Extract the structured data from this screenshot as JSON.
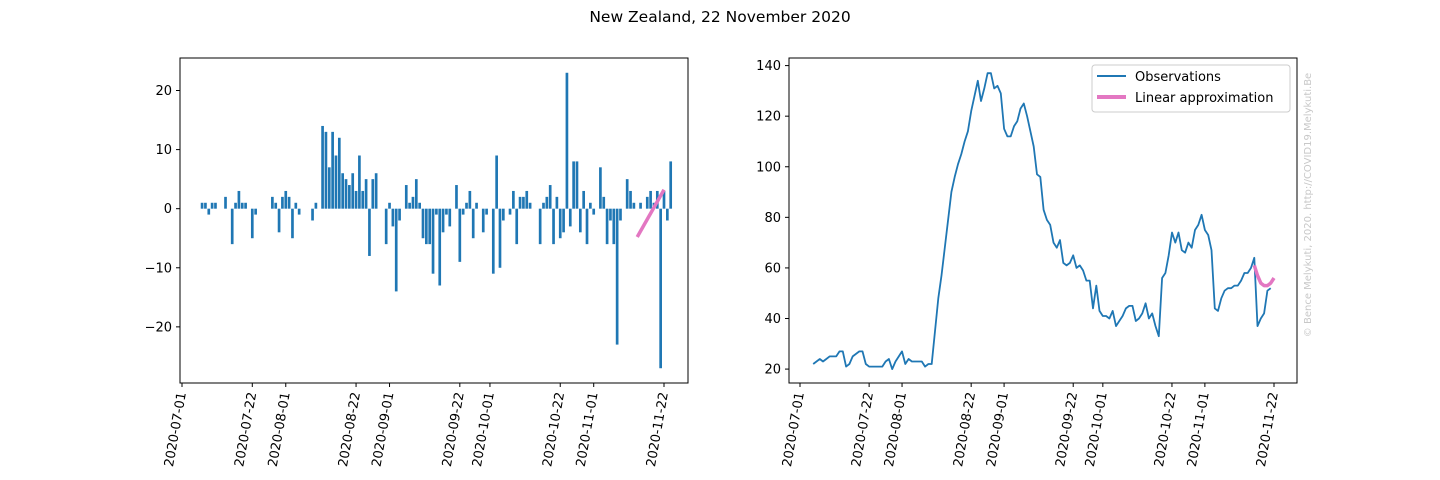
{
  "figure": {
    "title": "New Zealand, 22 November 2020",
    "watermark": "© Bence Melykuti, 2020. http://COVID19.Melykuti.Be"
  },
  "colors": {
    "bar": "#1f77b4",
    "observations": "#1f77b4",
    "linear": "#e377c2",
    "watermark": "#c8c8c8"
  },
  "chart_data": [
    {
      "type": "bar",
      "title": "",
      "xlabel": "",
      "ylabel": "",
      "x_ticks": [
        "2020-07-01",
        "2020-07-22",
        "2020-08-01",
        "2020-08-22",
        "2020-09-01",
        "2020-09-22",
        "2020-10-01",
        "2020-10-22",
        "2020-11-01",
        "2020-11-22"
      ],
      "ylim": [
        -29.5,
        25.5
      ],
      "y_ticks": [
        -20,
        -10,
        0,
        10,
        20
      ],
      "start_date": "2020-07-07",
      "values": [
        1,
        1,
        -1,
        1,
        1,
        0,
        0,
        2,
        0,
        -6,
        1,
        3,
        1,
        1,
        0,
        -5,
        -1,
        0,
        0,
        0,
        0,
        2,
        1,
        -4,
        2,
        3,
        2,
        -5,
        1,
        -1,
        0,
        0,
        0,
        -2,
        1,
        0,
        14,
        13,
        7,
        13,
        9,
        12,
        6,
        5,
        4,
        6,
        3,
        9,
        3,
        5,
        -8,
        5,
        6,
        0,
        0,
        -6,
        1,
        -3,
        -14,
        -2,
        0,
        4,
        1,
        2,
        5,
        1,
        -5,
        -6,
        -6,
        -11,
        -1,
        -13,
        -4,
        -1,
        -3,
        0,
        4,
        -9,
        -1,
        1,
        3,
        -5,
        1,
        0,
        -4,
        -1,
        0,
        -11,
        9,
        -10,
        -2,
        0,
        -1,
        3,
        -6,
        2,
        2,
        3,
        1,
        0,
        0,
        -6,
        1,
        2,
        4,
        -6,
        2,
        -5,
        -4,
        23,
        -3,
        8,
        8,
        -4,
        3,
        -6,
        1,
        -1,
        0,
        7,
        2,
        -6,
        -2,
        -6,
        -23,
        -2,
        0,
        5,
        3,
        1,
        0,
        1,
        0,
        2,
        3,
        1,
        3,
        -27,
        3,
        -2,
        8
      ],
      "series": [
        {
          "name": "Linear approximation",
          "start_date": "2020-11-14",
          "end_date": "2020-11-22",
          "values": [
            -4.8,
            3.2
          ]
        }
      ]
    },
    {
      "type": "line",
      "title": "",
      "xlabel": "",
      "ylabel": "",
      "x_ticks": [
        "2020-07-01",
        "2020-07-22",
        "2020-08-01",
        "2020-08-22",
        "2020-09-01",
        "2020-09-22",
        "2020-10-01",
        "2020-10-22",
        "2020-11-01",
        "2020-11-22"
      ],
      "ylim": [
        14.5,
        143
      ],
      "y_ticks": [
        20,
        40,
        60,
        80,
        100,
        120,
        140
      ],
      "legend": "top-right",
      "series": [
        {
          "name": "Observations",
          "start_date": "2020-07-05",
          "values": [
            22,
            23,
            24,
            23,
            24,
            25,
            25,
            25,
            27,
            27,
            21,
            22,
            25,
            26,
            27,
            27,
            22,
            21,
            21,
            21,
            21,
            21,
            23,
            24,
            20,
            23,
            25,
            27,
            22,
            24,
            23,
            23,
            23,
            23,
            21,
            22,
            22,
            35,
            48,
            57,
            68,
            79,
            90,
            96,
            101,
            105,
            110,
            114,
            122,
            128,
            134,
            126,
            131,
            137,
            137,
            131,
            132,
            129,
            115,
            112,
            112,
            116,
            118,
            123,
            125,
            120,
            114,
            108,
            97,
            96,
            83,
            79,
            77,
            70,
            68,
            71,
            62,
            61,
            62,
            65,
            60,
            61,
            59,
            55,
            55,
            44,
            53,
            43,
            41,
            41,
            40,
            43,
            37,
            39,
            41,
            44,
            45,
            45,
            39,
            40,
            42,
            46,
            40,
            42,
            37,
            33,
            56,
            58,
            65,
            74,
            70,
            74,
            67,
            66,
            70,
            68,
            75,
            77,
            81,
            75,
            73,
            67,
            44,
            43,
            48,
            51,
            52,
            52,
            53,
            53,
            55,
            58,
            58,
            60,
            64,
            37,
            40,
            42,
            51,
            52
          ]
        },
        {
          "name": "Linear approximation",
          "start_date": "2020-11-16",
          "values": [
            61,
            57,
            54,
            53,
            53,
            54,
            56
          ]
        }
      ]
    }
  ]
}
